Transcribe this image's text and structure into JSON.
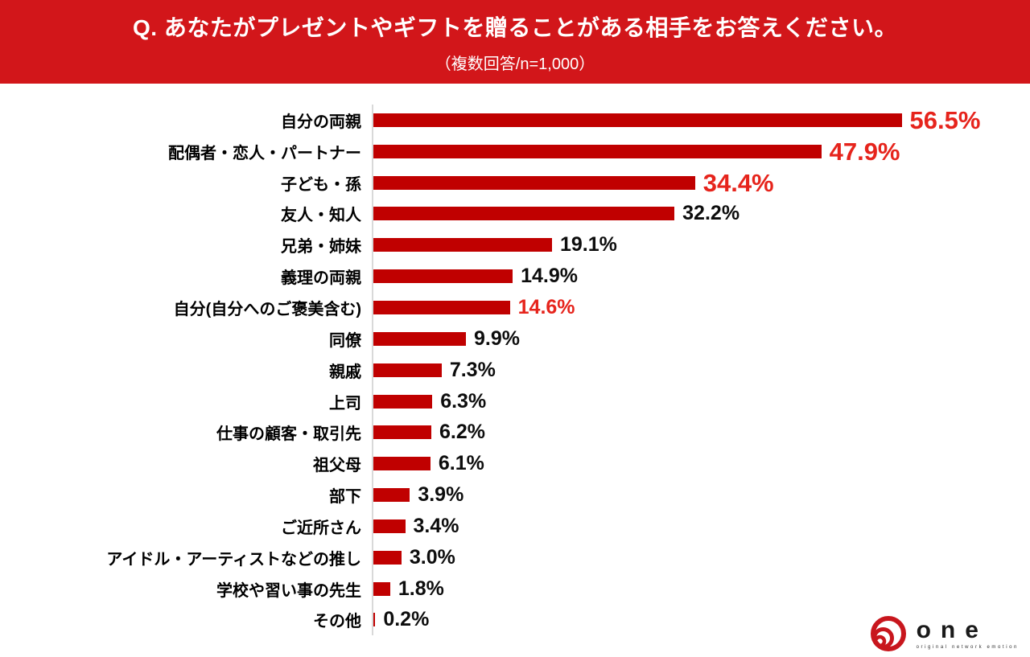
{
  "header": {
    "title": "Q. あなたがプレゼントやギフトを贈ることがある相手をお答えください。",
    "subtitle": "（複数回答/n=1,000）",
    "bg_color": "#d2161a",
    "text_color": "#ffffff"
  },
  "chart_data": {
    "type": "bar",
    "orientation": "horizontal",
    "title": "Q. あなたがプレゼントやギフトを贈ることがある相手をお答えください。",
    "subtitle": "（複数回答/n=1,000）",
    "categories": [
      "自分の両親",
      "配偶者・恋人・パートナー",
      "子ども・孫",
      "友人・知人",
      "兄弟・姉妹",
      "義理の両親",
      "自分(自分へのご褒美含む)",
      "同僚",
      "親戚",
      "上司",
      "仕事の顧客・取引先",
      "祖父母",
      "部下",
      "ご近所さん",
      "アイドル・アーティストなどの推し",
      "学校や習い事の先生",
      "その他"
    ],
    "values": [
      56.5,
      47.9,
      34.4,
      32.2,
      19.1,
      14.9,
      14.6,
      9.9,
      7.3,
      6.3,
      6.2,
      6.1,
      3.9,
      3.4,
      3.0,
      1.8,
      0.2
    ],
    "value_labels": [
      "56.5%",
      "47.9%",
      "34.4%",
      "32.2%",
      "19.1%",
      "14.9%",
      "14.6%",
      "9.9%",
      "7.3%",
      "6.3%",
      "6.2%",
      "6.1%",
      "3.9%",
      "3.4%",
      "3.0%",
      "1.8%",
      "0.2%"
    ],
    "emphasis": [
      "large-red",
      "large-red",
      "large-red",
      "normal",
      "normal",
      "normal",
      "red",
      "normal",
      "normal",
      "normal",
      "normal",
      "normal",
      "normal",
      "normal",
      "normal",
      "normal",
      "normal"
    ],
    "bar_color": "#c00000",
    "value_red_color": "#e6241c",
    "value_black_color": "#0d0d0d",
    "axis_line_color": "#d9d9d9",
    "xlim": [
      0,
      60
    ],
    "grid": false,
    "legend": false
  },
  "logo": {
    "name": "one",
    "tagline": "original network emotion",
    "mark_color": "#c8161d",
    "text_color": "#1a1a1a"
  }
}
